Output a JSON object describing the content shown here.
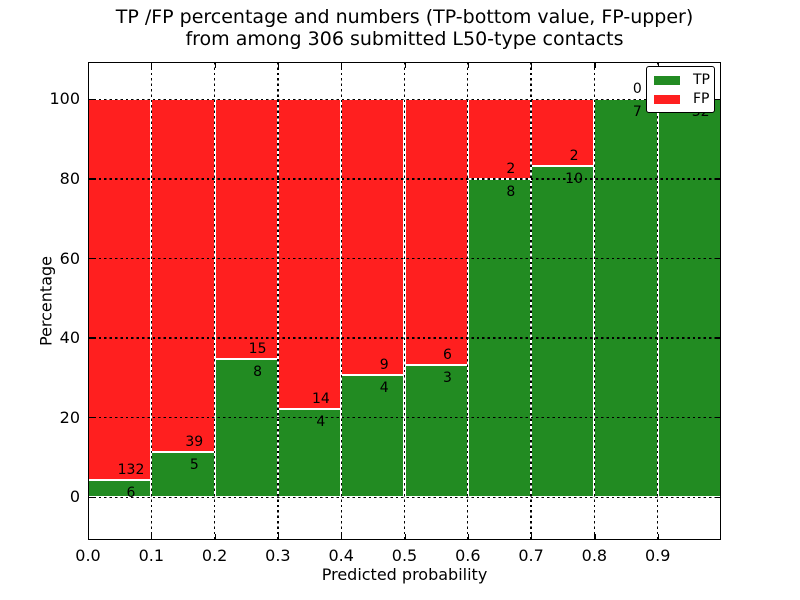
{
  "title_line1": "TP /FP percentage and numbers (TP-bottom value, FP-upper)",
  "title_line2": "from among 306 submitted L50-type contacts",
  "axes": {
    "xlabel": "Predicted probability",
    "ylabel": "Percentage",
    "xticks": [
      "0.0",
      "0.1",
      "0.2",
      "0.3",
      "0.4",
      "0.5",
      "0.6",
      "0.7",
      "0.8",
      "0.9"
    ],
    "yticks": [
      0,
      20,
      40,
      60,
      80,
      100
    ]
  },
  "legend": {
    "items": [
      {
        "label": "TP",
        "color": "#228b22"
      },
      {
        "label": "FP",
        "color": "#ff1f1f"
      }
    ],
    "position": "upper right"
  },
  "chart_data": {
    "type": "bar",
    "stacked": true,
    "title": "TP /FP percentage and numbers (TP-bottom value, FP-upper) from among 306 submitted L50-type contacts",
    "xlabel": "Predicted probability",
    "ylabel": "Percentage",
    "x_bin_edges": [
      0.0,
      0.1,
      0.2,
      0.3,
      0.4,
      0.5,
      0.6,
      0.7,
      0.8,
      0.9,
      1.0
    ],
    "categories": [
      "0.0-0.1",
      "0.1-0.2",
      "0.2-0.3",
      "0.3-0.4",
      "0.4-0.5",
      "0.5-0.6",
      "0.6-0.7",
      "0.7-0.8",
      "0.8-0.9",
      "0.9-1.0"
    ],
    "series": [
      {
        "name": "TP",
        "color": "#228b22",
        "counts": [
          6,
          5,
          8,
          4,
          4,
          3,
          8,
          10,
          7,
          32
        ],
        "percent": [
          4.3,
          11.4,
          34.8,
          22.2,
          30.8,
          33.3,
          80.0,
          83.3,
          100.0,
          100.0
        ]
      },
      {
        "name": "FP",
        "color": "#ff1f1f",
        "counts": [
          132,
          39,
          15,
          14,
          9,
          6,
          2,
          2,
          0,
          0
        ],
        "percent": [
          95.7,
          88.6,
          65.2,
          77.8,
          69.2,
          66.7,
          20.0,
          16.7,
          0.0,
          0.0
        ]
      }
    ],
    "bar_value_labels": "TP count printed below segment boundary, FP count printed above",
    "total_submitted": 306,
    "xlim": [
      0.0,
      1.0
    ],
    "ylim": [
      -10.9,
      109.4
    ],
    "grid": "dotted black, both axes",
    "bar_edge_color": "#ffffff",
    "legend_position": "upper right"
  }
}
